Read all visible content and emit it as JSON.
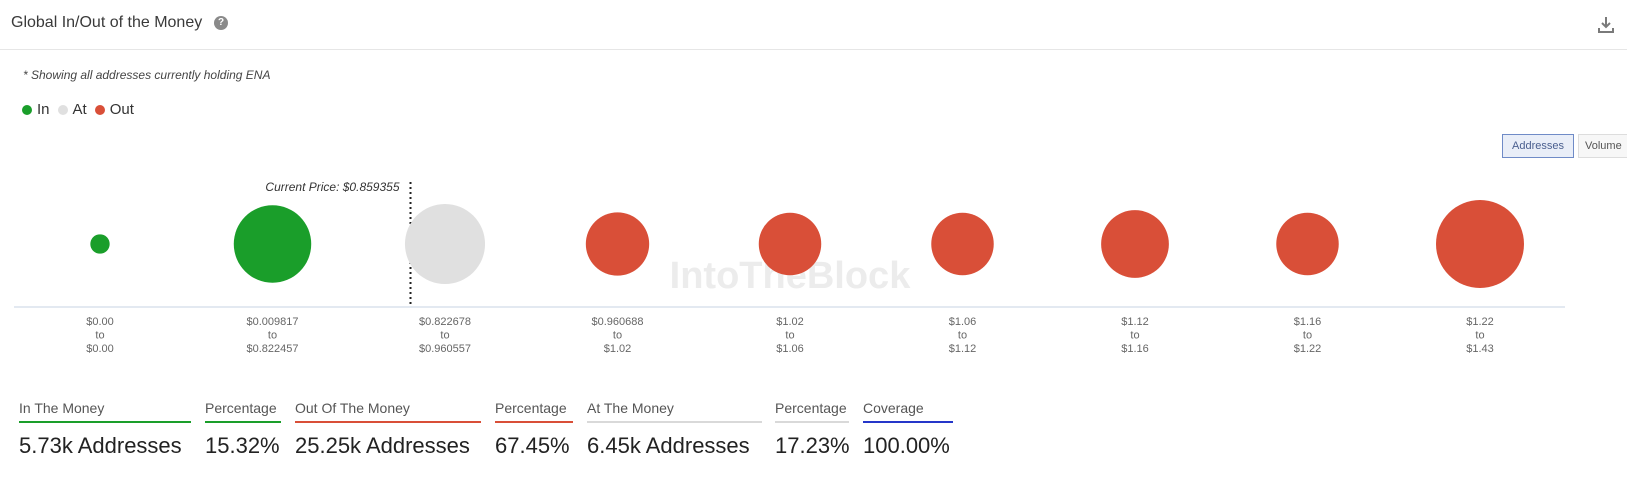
{
  "header": {
    "title": "Global In/Out of the Money",
    "help_icon": "?"
  },
  "note": "* Showing all addresses currently holding ENA",
  "legend": [
    {
      "label": "In",
      "color": "#1a9e2a"
    },
    {
      "label": "At",
      "color": "#e0e0e0"
    },
    {
      "label": "Out",
      "color": "#d94f38"
    }
  ],
  "toggles": {
    "addresses": "Addresses",
    "volume": "Volume"
  },
  "chart_data": {
    "type": "bubble",
    "current_price_label": "Current Price: $0.859355",
    "current_price": 0.859355,
    "watermark": "IntoTheBlock",
    "buckets": [
      {
        "from": "$0.00",
        "to": "$0.00",
        "status": "in",
        "relative_size": 0.22
      },
      {
        "from": "$0.009817",
        "to": "$0.822457",
        "status": "in",
        "relative_size": 0.88
      },
      {
        "from": "$0.822678",
        "to": "$0.960557",
        "status": "at",
        "relative_size": 0.91
      },
      {
        "from": "$0.960688",
        "to": "$1.02",
        "status": "out",
        "relative_size": 0.72
      },
      {
        "from": "$1.02",
        "to": "$1.06",
        "status": "out",
        "relative_size": 0.71
      },
      {
        "from": "$1.06",
        "to": "$1.12",
        "status": "out",
        "relative_size": 0.71
      },
      {
        "from": "$1.12",
        "to": "$1.16",
        "status": "out",
        "relative_size": 0.77
      },
      {
        "from": "$1.16",
        "to": "$1.22",
        "status": "out",
        "relative_size": 0.71
      },
      {
        "from": "$1.22",
        "to": "$1.43",
        "status": "out",
        "relative_size": 1.0
      }
    ],
    "range_joiner": "to",
    "colors": {
      "in": "#1a9e2a",
      "at": "#e0e0e0",
      "out": "#d94f38"
    }
  },
  "stats": [
    {
      "label": "In The Money",
      "value": "5.73k Addresses",
      "color": "#1a9e2a"
    },
    {
      "label": "Percentage",
      "value": "15.32%",
      "color": "#1a9e2a"
    },
    {
      "label": "Out Of The Money",
      "value": "25.25k Addresses",
      "color": "#d94f38"
    },
    {
      "label": "Percentage",
      "value": "67.45%",
      "color": "#d94f38"
    },
    {
      "label": "At The Money",
      "value": "6.45k Addresses",
      "color": "#d9d9d9"
    },
    {
      "label": "Percentage",
      "value": "17.23%",
      "color": "#d9d9d9"
    },
    {
      "label": "Coverage",
      "value": "100.00%",
      "color": "#2536c9"
    }
  ]
}
